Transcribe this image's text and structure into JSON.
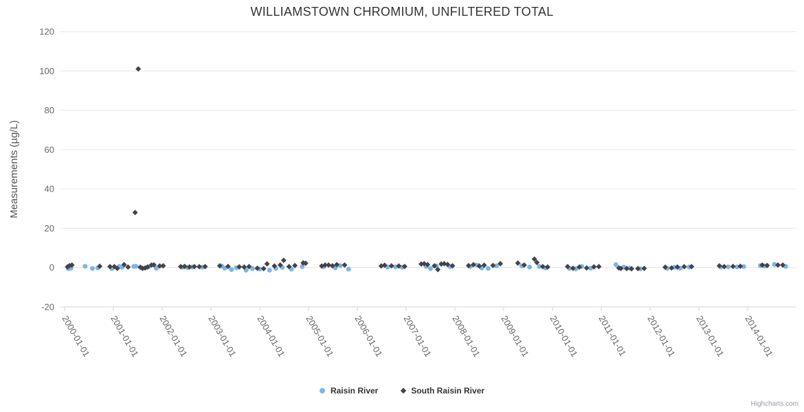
{
  "title": "WILLIAMSTOWN CHROMIUM, UNFILTERED TOTAL",
  "credits_label": "Highcharts.com",
  "legend": {
    "items": [
      {
        "label": "Raisin River",
        "marker": "circle",
        "color": "#7cb5ec"
      },
      {
        "label": "South Raisin River",
        "marker": "diamond",
        "color": "#434348"
      }
    ]
  },
  "colors": {
    "background": "#ffffff",
    "grid": "#e6e6e6",
    "axis_line": "#ccd6eb",
    "tick_mark": "#ccd6eb",
    "axis_label": "#666666",
    "axis_title": "#555555",
    "chart_title": "#333333",
    "legend_text": "#333333",
    "credits": "#999aa6"
  },
  "chart_data": {
    "type": "scatter",
    "title": "WILLIAMSTOWN CHROMIUM, UNFILTERED TOTAL",
    "xlabel": "",
    "ylabel": "Measurements (µg/L)",
    "ylim": [
      -20,
      120
    ],
    "yticks": [
      -20,
      0,
      20,
      40,
      60,
      80,
      100,
      120
    ],
    "xtick_labels": [
      "2000-01-01",
      "2001-01-01",
      "2002-01-01",
      "2003-01-01",
      "2004-01-01",
      "2005-01-01",
      "2006-01-01",
      "2007-01-01",
      "2008-01-01",
      "2009-01-01",
      "2010-01-01",
      "2011-01-01",
      "2012-01-01",
      "2013-01-01",
      "2014-01-01"
    ],
    "x_unit": "decimal-years",
    "xlim": [
      1999.9,
      2015.0
    ],
    "grid": "horizontal-only",
    "legend_position": "bottom-center",
    "series": [
      {
        "name": "Raisin River",
        "marker": "circle",
        "color": "#7cb5ec",
        "points": [
          [
            2000.08,
            -0.5
          ],
          [
            2000.13,
            -0.3
          ],
          [
            2000.42,
            0.7
          ],
          [
            2000.57,
            -0.4
          ],
          [
            2000.68,
            -0.2
          ],
          [
            2000.97,
            -0.5
          ],
          [
            2001.12,
            0.6
          ],
          [
            2001.18,
            0.2
          ],
          [
            2001.42,
            0.6
          ],
          [
            2001.46,
            0.7
          ],
          [
            2001.58,
            -0.2
          ],
          [
            2001.72,
            0.4
          ],
          [
            2001.88,
            -0.3
          ],
          [
            2002.42,
            0.2
          ],
          [
            2002.52,
            0.0
          ],
          [
            2002.62,
            0.3
          ],
          [
            2002.82,
            0.2
          ],
          [
            2003.22,
            0.8
          ],
          [
            2003.28,
            -0.3
          ],
          [
            2003.42,
            -1.0
          ],
          [
            2003.52,
            -0.1
          ],
          [
            2003.72,
            -1.3
          ],
          [
            2003.85,
            -0.5
          ],
          [
            2004.0,
            -0.7
          ],
          [
            2004.2,
            -1.3
          ],
          [
            2004.33,
            -0.4
          ],
          [
            2004.46,
            0.1
          ],
          [
            2004.65,
            -0.8
          ],
          [
            2004.87,
            0.5
          ],
          [
            2005.31,
            0.5
          ],
          [
            2005.55,
            -0.1
          ],
          [
            2005.65,
            1.0
          ],
          [
            2005.82,
            -0.8
          ],
          [
            2006.62,
            0.3
          ],
          [
            2006.78,
            0.4
          ],
          [
            2006.92,
            0.2
          ],
          [
            2007.41,
            0.6
          ],
          [
            2007.5,
            -0.5
          ],
          [
            2007.62,
            0.8
          ],
          [
            2007.9,
            0.5
          ],
          [
            2008.32,
            0.6
          ],
          [
            2008.45,
            1.3
          ],
          [
            2008.55,
            -0.2
          ],
          [
            2008.68,
            -0.4
          ],
          [
            2008.85,
            0.9
          ],
          [
            2009.37,
            0.9
          ],
          [
            2009.53,
            0.3
          ],
          [
            2009.73,
            0.6
          ],
          [
            2009.86,
            -0.2
          ],
          [
            2010.35,
            -0.4
          ],
          [
            2010.48,
            -0.6
          ],
          [
            2010.6,
            0.6
          ],
          [
            2010.78,
            -0.3
          ],
          [
            2011.3,
            1.5
          ],
          [
            2011.46,
            0.3
          ],
          [
            2011.58,
            -0.3
          ],
          [
            2011.8,
            -0.6
          ],
          [
            2012.35,
            -0.4
          ],
          [
            2012.5,
            0.2
          ],
          [
            2012.62,
            -0.3
          ],
          [
            2012.8,
            0.3
          ],
          [
            2013.45,
            0.3
          ],
          [
            2013.6,
            0.4
          ],
          [
            2013.78,
            0.35
          ],
          [
            2013.92,
            0.5
          ],
          [
            2014.26,
            1.0
          ],
          [
            2014.35,
            0.8
          ],
          [
            2014.55,
            1.6
          ],
          [
            2014.78,
            0.6
          ]
        ]
      },
      {
        "name": "South Raisin River",
        "marker": "diamond",
        "color": "#434348",
        "points": [
          [
            2000.06,
            0.4
          ],
          [
            2000.1,
            1.0
          ],
          [
            2000.15,
            1.3
          ],
          [
            2000.72,
            0.7
          ],
          [
            2000.93,
            0.5
          ],
          [
            2001.02,
            0.5
          ],
          [
            2001.08,
            -0.4
          ],
          [
            2001.22,
            1.5
          ],
          [
            2001.3,
            0.3
          ],
          [
            2001.445,
            28
          ],
          [
            2001.51,
            101
          ],
          [
            2001.55,
            0.2
          ],
          [
            2001.6,
            -0.4
          ],
          [
            2001.65,
            -0.2
          ],
          [
            2001.7,
            0.3
          ],
          [
            2001.78,
            1.3
          ],
          [
            2001.83,
            1.4
          ],
          [
            2001.95,
            0.8
          ],
          [
            2002.02,
            0.9
          ],
          [
            2002.38,
            0.5
          ],
          [
            2002.46,
            0.6
          ],
          [
            2002.56,
            0.35
          ],
          [
            2002.66,
            0.5
          ],
          [
            2002.76,
            0.45
          ],
          [
            2002.88,
            0.5
          ],
          [
            2003.18,
            0.9
          ],
          [
            2003.35,
            0.6
          ],
          [
            2003.58,
            0.4
          ],
          [
            2003.68,
            0.3
          ],
          [
            2003.78,
            0.5
          ],
          [
            2003.95,
            -0.3
          ],
          [
            2004.08,
            -0.5
          ],
          [
            2004.15,
            1.9
          ],
          [
            2004.3,
            0.8
          ],
          [
            2004.42,
            1.3
          ],
          [
            2004.49,
            3.7
          ],
          [
            2004.6,
            0.5
          ],
          [
            2004.72,
            1.05
          ],
          [
            2004.89,
            2.4
          ],
          [
            2004.94,
            2.2
          ],
          [
            2005.27,
            0.8
          ],
          [
            2005.34,
            1.3
          ],
          [
            2005.41,
            1.3
          ],
          [
            2005.49,
            0.9
          ],
          [
            2005.58,
            1.5
          ],
          [
            2005.74,
            1.3
          ],
          [
            2006.49,
            0.8
          ],
          [
            2006.56,
            1.2
          ],
          [
            2006.7,
            0.9
          ],
          [
            2006.85,
            0.8
          ],
          [
            2006.97,
            0.6
          ],
          [
            2007.31,
            1.8
          ],
          [
            2007.37,
            2.0
          ],
          [
            2007.44,
            1.5
          ],
          [
            2007.58,
            0.9
          ],
          [
            2007.65,
            -1.0
          ],
          [
            2007.72,
            1.8
          ],
          [
            2007.78,
            2.0
          ],
          [
            2007.85,
            1.6
          ],
          [
            2007.95,
            0.9
          ],
          [
            2008.28,
            1.0
          ],
          [
            2008.38,
            1.5
          ],
          [
            2008.5,
            0.8
          ],
          [
            2008.6,
            1.2
          ],
          [
            2008.78,
            1.1
          ],
          [
            2008.93,
            2.0
          ],
          [
            2009.29,
            2.3
          ],
          [
            2009.42,
            1.3
          ],
          [
            2009.63,
            4.3
          ],
          [
            2009.68,
            2.6
          ],
          [
            2009.8,
            0.5
          ],
          [
            2009.9,
            0.3
          ],
          [
            2010.31,
            0.5
          ],
          [
            2010.42,
            -0.3
          ],
          [
            2010.55,
            0.3
          ],
          [
            2010.7,
            -0.2
          ],
          [
            2010.85,
            0.4
          ],
          [
            2010.95,
            0.5
          ],
          [
            2011.36,
            -0.2
          ],
          [
            2011.4,
            -0.4
          ],
          [
            2011.52,
            -0.5
          ],
          [
            2011.62,
            -0.6
          ],
          [
            2011.75,
            -0.5
          ],
          [
            2011.88,
            -0.4
          ],
          [
            2012.31,
            0.2
          ],
          [
            2012.44,
            -0.2
          ],
          [
            2012.56,
            0.3
          ],
          [
            2012.7,
            0.45
          ],
          [
            2012.85,
            0.5
          ],
          [
            2013.42,
            0.9
          ],
          [
            2013.52,
            0.5
          ],
          [
            2013.7,
            0.6
          ],
          [
            2013.85,
            0.7
          ],
          [
            2014.3,
            1.3
          ],
          [
            2014.4,
            1.1
          ],
          [
            2014.62,
            1.3
          ],
          [
            2014.72,
            1.3
          ]
        ]
      }
    ]
  }
}
